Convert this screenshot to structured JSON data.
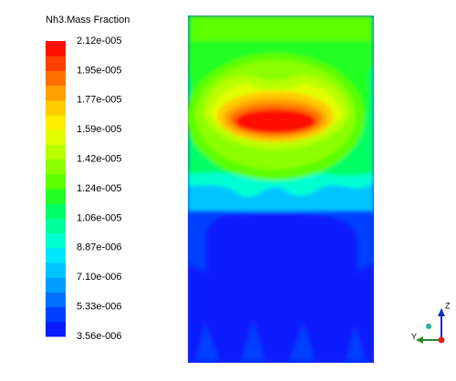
{
  "legend": {
    "title": "Nh3.Mass Fraction",
    "labels": [
      "2.12e-005",
      "1.95e-005",
      "1.77e-005",
      "1.59e-005",
      "1.42e-005",
      "1.24e-005",
      "1.06e-005",
      "8.87e-006",
      "7.10e-006",
      "5.33e-006",
      "3.56e-006"
    ],
    "colors": [
      "#0a1cff",
      "#0040ff",
      "#0070ff",
      "#009cff",
      "#00c4ff",
      "#00e6ff",
      "#00ffd0",
      "#00ff9a",
      "#00ff64",
      "#22ff22",
      "#5cff00",
      "#8cff00",
      "#b8ff00",
      "#e2ff00",
      "#ffee00",
      "#ffcc00",
      "#ffa000",
      "#ff7000",
      "#ff4000",
      "#ff1000"
    ]
  },
  "triad": {
    "labels": [
      "Z",
      "Y"
    ]
  }
}
